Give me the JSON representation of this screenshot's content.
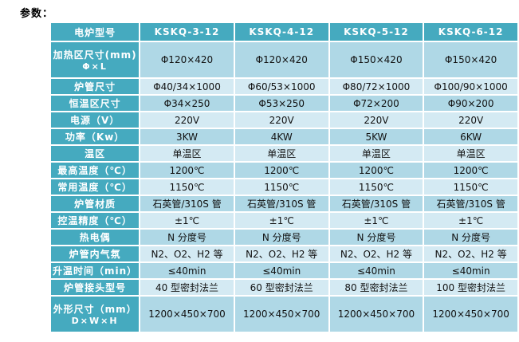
{
  "page": {
    "title": "参数："
  },
  "colors": {
    "header_teal": "#45AABF",
    "row_medium_blue": "#AFD8E6",
    "row_light_blue": "#D4EAF3",
    "grid_white": "#FFFFFF",
    "header_text": "#FFFFFF",
    "body_text": "#111111"
  },
  "table": {
    "corner_label": "电炉型号",
    "models": [
      "KSKQ-3-12",
      "KSKQ-4-12",
      "KSKQ-5-12",
      "KSKQ-6-12"
    ],
    "rows": [
      {
        "label": "加热区尺寸(mm)",
        "label2": "Φ×L",
        "values": [
          "Φ120×420",
          "Φ120×420",
          "Φ150×420",
          "Φ150×420"
        ]
      },
      {
        "label": "炉管尺寸",
        "values": [
          "Φ40/34×1000",
          "Φ60/53×1000",
          "Φ80/72×1000",
          "Φ100/90×1000"
        ]
      },
      {
        "label": "恒温区尺寸",
        "values": [
          "Φ34×250",
          "Φ53×250",
          "Φ72×200",
          "Φ90×200"
        ]
      },
      {
        "label": "电源（V）",
        "values": [
          "220V",
          "220V",
          "220V",
          "220V"
        ]
      },
      {
        "label": "功率（Kw）",
        "values": [
          "3KW",
          "4KW",
          "5KW",
          "6KW"
        ]
      },
      {
        "label": "温区",
        "values": [
          "单温区",
          "单温区",
          "单温区",
          "单温区"
        ]
      },
      {
        "label": "最高温度（℃）",
        "values": [
          "1200℃",
          "1200℃",
          "1200℃",
          "1200℃"
        ]
      },
      {
        "label": "常用温度（℃）",
        "values": [
          "1150℃",
          "1150℃",
          "1150℃",
          "1150℃"
        ]
      },
      {
        "label": "炉管材质",
        "values": [
          "石英管/310S 管",
          "石英管/310S 管",
          "石英管/310S 管",
          "石英管/310S 管"
        ]
      },
      {
        "label": "控温精度（℃）",
        "values": [
          "±1℃",
          "±1℃",
          "±1℃",
          "±1℃"
        ]
      },
      {
        "label": "热电偶",
        "values": [
          "N 分度号",
          "N 分度号",
          "N 分度号",
          "N 分度号"
        ]
      },
      {
        "label": "炉管内气氛",
        "values": [
          "N2、O2、H2 等",
          "N2、O2、H2 等",
          "N2、O2、H2 等",
          "N2、O2、H2 等"
        ]
      },
      {
        "label": "升温时间（min）",
        "values": [
          "≤40min",
          "≤40min",
          "≤40min",
          "≤40min"
        ]
      },
      {
        "label": "炉管接头型号",
        "values": [
          "40 型密封法兰",
          "60 型密封法兰",
          "80 型密封法兰",
          "100 型密封法兰"
        ]
      },
      {
        "label": "外形尺寸（mm）",
        "label2": "D×W×H",
        "values": [
          "1200×450×700",
          "1200×450×700",
          "1200×450×700",
          "1200×450×700"
        ]
      }
    ]
  }
}
